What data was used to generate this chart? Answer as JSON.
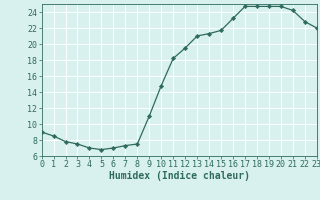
{
  "x": [
    0,
    1,
    2,
    3,
    4,
    5,
    6,
    7,
    8,
    9,
    10,
    11,
    12,
    13,
    14,
    15,
    16,
    17,
    18,
    19,
    20,
    21,
    22,
    23
  ],
  "y": [
    9.0,
    8.5,
    7.8,
    7.5,
    7.0,
    6.8,
    7.0,
    7.3,
    7.5,
    11.0,
    14.8,
    18.2,
    19.5,
    21.0,
    21.3,
    21.7,
    23.2,
    24.7,
    24.7,
    24.7,
    24.7,
    24.2,
    22.8,
    22.0
  ],
  "line_color": "#2e6b5e",
  "marker": "D",
  "marker_size": 2.2,
  "background_color": "#d8f0ee",
  "grid_color": "#b0d8d4",
  "xlabel": "Humidex (Indice chaleur)",
  "xlabel_fontsize": 7,
  "tick_fontsize": 6,
  "ylim": [
    6,
    25
  ],
  "yticks": [
    6,
    8,
    10,
    12,
    14,
    16,
    18,
    20,
    22,
    24
  ],
  "xlim": [
    0,
    23
  ],
  "xticks": [
    0,
    1,
    2,
    3,
    4,
    5,
    6,
    7,
    8,
    9,
    10,
    11,
    12,
    13,
    14,
    15,
    16,
    17,
    18,
    19,
    20,
    21,
    22,
    23
  ]
}
